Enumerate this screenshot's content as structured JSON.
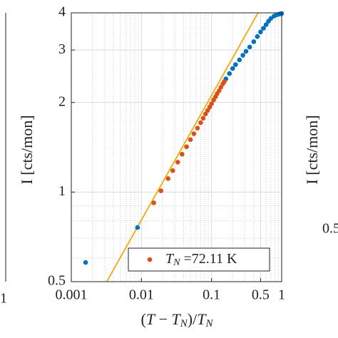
{
  "chart_data": {
    "type": "scatter",
    "xlabel": {
      "open": "(",
      "var": "T",
      "minus": " − ",
      "var2": "T",
      "sub2": "N",
      "mid": ")/",
      "var3": "T",
      "sub3": "N"
    },
    "ylabel": "I [cts/mon]",
    "xlim": [
      0.001,
      1
    ],
    "ylim": [
      0.5,
      4
    ],
    "xticks": [
      0.001,
      0.01,
      0.1,
      0.5,
      1
    ],
    "yticks": [
      0.5,
      1,
      2,
      3,
      4
    ],
    "xscale": "log",
    "yscale": "log",
    "grid": true,
    "series": [
      {
        "color": "#0072bd",
        "x": [
          0.0016,
          0.0088,
          0.16,
          0.18,
          0.2,
          0.22,
          0.25,
          0.28,
          0.31,
          0.35,
          0.4,
          0.45,
          0.5,
          0.55,
          0.6,
          0.65,
          0.7,
          0.78,
          0.85,
          0.92,
          0.97,
          1
        ],
        "values": [
          0.58,
          0.76,
          2.4,
          2.5,
          2.6,
          2.68,
          2.78,
          2.88,
          2.97,
          3.07,
          3.2,
          3.33,
          3.45,
          3.55,
          3.65,
          3.75,
          3.83,
          3.9,
          3.94,
          3.96,
          3.97,
          3.98
        ]
      },
      {
        "color": "#d95319",
        "x": [
          0.015,
          0.019,
          0.024,
          0.028,
          0.033,
          0.038,
          0.044,
          0.05,
          0.056,
          0.063,
          0.07,
          0.076,
          0.082,
          0.088,
          0.094,
          0.1,
          0.107,
          0.114,
          0.12,
          0.128,
          0.136,
          0.145,
          0.152
        ],
        "values": [
          0.92,
          1.01,
          1.11,
          1.18,
          1.26,
          1.34,
          1.42,
          1.5,
          1.57,
          1.64,
          1.71,
          1.77,
          1.83,
          1.88,
          1.93,
          1.98,
          2.04,
          2.09,
          2.14,
          2.19,
          2.25,
          2.31,
          2.35
        ]
      }
    ],
    "fit": {
      "color": "#edb120",
      "x": [
        0.0032,
        0.46
      ],
      "values": [
        0.5,
        4
      ]
    },
    "legend": {
      "var": "T",
      "sub": "N",
      "text": " =72.11 K"
    },
    "neighbors": {
      "left_tick": "1",
      "right_ylabel": "I [cts/mon]",
      "right_tick": "0.5"
    }
  }
}
